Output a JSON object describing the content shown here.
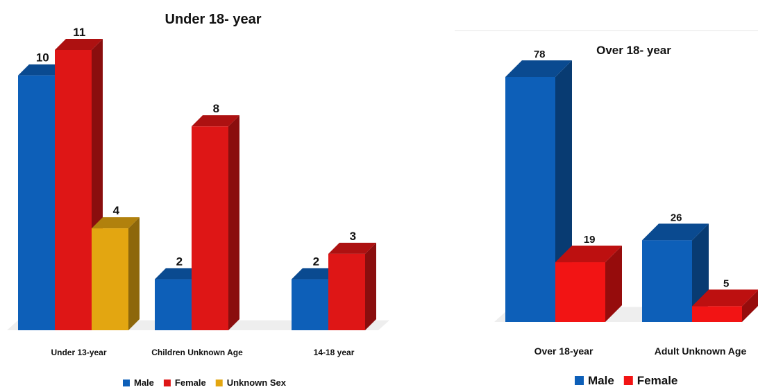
{
  "chart_data": [
    {
      "type": "bar",
      "title": "Under 18- year",
      "categories": [
        "Under 13-year",
        "Children Unknown Age",
        "14-18 year"
      ],
      "series": [
        {
          "name": "Male",
          "values": [
            10,
            2,
            2
          ],
          "color": "#0d5fb8"
        },
        {
          "name": "Female",
          "values": [
            11,
            8,
            3
          ],
          "color": "#de1616"
        },
        {
          "name": "Unknown Sex",
          "values": [
            4,
            null,
            null
          ],
          "color": "#e3a611"
        }
      ],
      "legend_position": "bottom",
      "grid": false
    },
    {
      "type": "bar",
      "title": "Over 18- year",
      "categories": [
        "Over 18-year",
        "Adult Unknown Age"
      ],
      "series": [
        {
          "name": "Male",
          "values": [
            78,
            26
          ],
          "color": "#0d5fb8"
        },
        {
          "name": "Female",
          "values": [
            19,
            5
          ],
          "color": "#f21414"
        }
      ],
      "legend_position": "bottom",
      "grid": false
    }
  ]
}
